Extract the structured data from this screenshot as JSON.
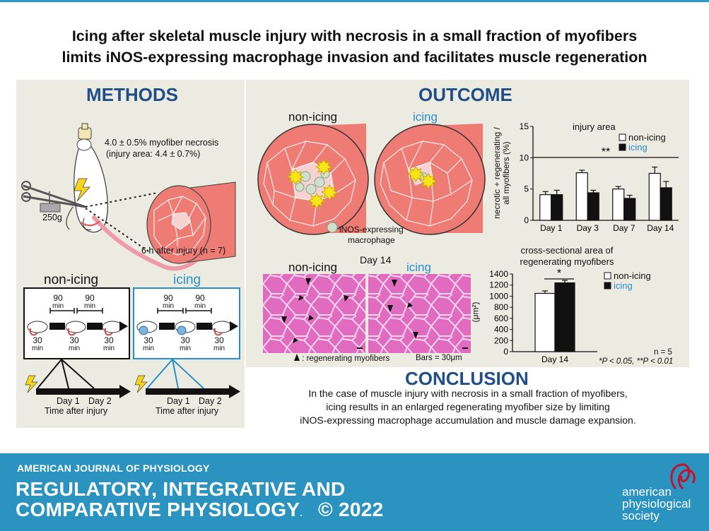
{
  "title": {
    "line1": "Icing after skeletal muscle injury with necrosis in a small fraction of myofibers",
    "line2": "limits iNOS-expressing macrophage invasion and facilitates muscle regeneration"
  },
  "methods": {
    "heading": "METHODS",
    "necrosis_text": "4.0 ± 0.5% myofiber necrosis",
    "injury_area_text": "(injury area: 4.4 ± 0.7%)",
    "weight_label": "250g",
    "time_note": "6 h after injury (n = 7)",
    "non_icing_label": "non-icing",
    "icing_label": "icing",
    "protocol_interval": "90",
    "protocol_interval_unit": "min",
    "protocol_duration": "30",
    "protocol_duration_unit": "min",
    "day1": "Day 1",
    "day2": "Day 2",
    "time_after_injury": "Time after injury"
  },
  "outcome": {
    "heading": "OUTCOME",
    "non_icing_label": "non-icing",
    "icing_label": "icing",
    "macrophage_legend_line1": "iNOS-expressing",
    "macrophage_legend_line2": "macrophage",
    "day14_label": "Day 14",
    "histo_non_icing": "non-icing",
    "histo_icing": "icing",
    "regen_legend": ": regenerating myofibers",
    "scalebar": "Bars = 30μm",
    "n_note": "n = 5",
    "p_note": "*P < 0.05, **P < 0.01"
  },
  "conclusion": {
    "heading": "CONCLUSION",
    "line1": "In the case of muscle injury with necrosis in a small fraction of myofibers,",
    "line2": "icing results in an enlarged regenerating myofiber size by limiting",
    "line3": "iNOS-expressing macrophage accumulation and muscle damage expansion."
  },
  "footer": {
    "journal_small": "AMERICAN JOURNAL OF PHYSIOLOGY",
    "journal_line1": "REGULATORY, INTEGRATIVE AND",
    "journal_line2": "COMPARATIVE PHYSIOLOGY",
    "year": "© 2022",
    "society_line1": "american",
    "society_line2": "physiological",
    "society_line3": "society"
  },
  "colors": {
    "accent_blue": "#1f4e89",
    "icing_blue": "#2a8fc9",
    "footer_blue": "#2a93c0",
    "panel_bg": "#ecebe2",
    "muscle_pink": "#ee7b74",
    "histology_magenta": "#e06bbf"
  },
  "chart_data": [
    {
      "type": "bar",
      "title": "injury area",
      "ylabel": "necrotic + regenerating / all myofibers (%)",
      "ylabel_lines": [
        "necrotic + regenerating /",
        "all myofibers (%)"
      ],
      "ylim": [
        0,
        15
      ],
      "yticks": [
        0,
        5,
        10,
        15
      ],
      "categories": [
        "Day 1",
        "Day 3",
        "Day 7",
        "Day 14"
      ],
      "series": [
        {
          "name": "non-icing",
          "fill": "white",
          "values": [
            4.1,
            7.6,
            5.0,
            7.5
          ],
          "errors": [
            0.5,
            0.4,
            0.4,
            1.0
          ]
        },
        {
          "name": "icing",
          "fill": "black",
          "values": [
            4.1,
            4.4,
            3.5,
            5.2
          ],
          "errors": [
            0.7,
            0.4,
            0.5,
            1.0
          ]
        }
      ],
      "significance": "**",
      "legend": "top-right"
    },
    {
      "type": "bar",
      "title": "cross-sectional area of regenerating myofibers",
      "title_lines": [
        "cross-sectional area of",
        "regenerating myofibers"
      ],
      "ylabel": "(μm²)",
      "ylim": [
        0,
        1400
      ],
      "yticks": [
        0,
        200,
        400,
        600,
        800,
        1000,
        1200,
        1400
      ],
      "categories": [
        "Day 14"
      ],
      "series": [
        {
          "name": "non-icing",
          "fill": "white",
          "values": [
            1050
          ],
          "errors": [
            45
          ]
        },
        {
          "name": "icing",
          "fill": "black",
          "values": [
            1240
          ],
          "errors": [
            45
          ]
        }
      ],
      "significance": "*",
      "legend": "top-right"
    }
  ]
}
